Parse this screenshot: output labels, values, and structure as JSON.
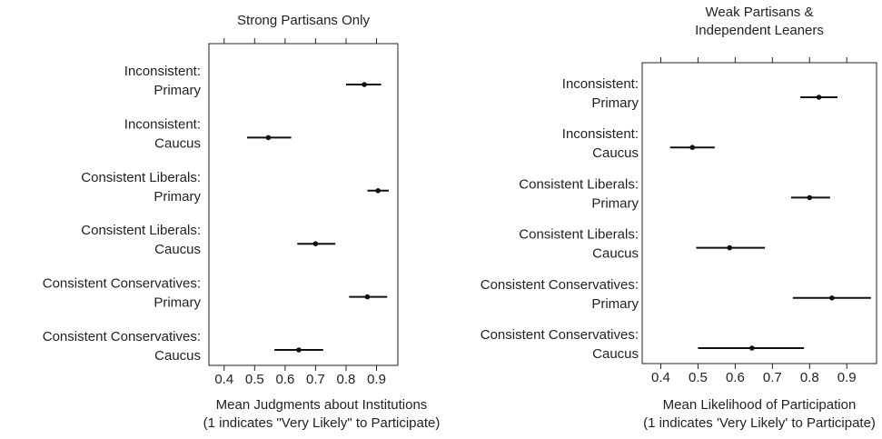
{
  "chart_data": [
    {
      "type": "scatter",
      "title": "Strong Partisans Only",
      "xlabel": [
        "Mean Judgments about Institutions",
        "(1 indicates \"Very Likely\" to Participate)"
      ],
      "ticks": [
        0.4,
        0.5,
        0.6,
        0.7,
        0.8,
        0.9
      ],
      "tick_labels": [
        "0.4",
        "0.5",
        "0.6",
        "0.7",
        "0.8",
        "0.9"
      ],
      "xlim": [
        0.35,
        0.97
      ],
      "grid": false,
      "rows": [
        {
          "label": [
            "Inconsistent:",
            "Primary"
          ],
          "mean": 0.86,
          "lo": 0.8,
          "hi": 0.915
        },
        {
          "label": [
            "Inconsistent:",
            "Caucus"
          ],
          "mean": 0.545,
          "lo": 0.475,
          "hi": 0.62
        },
        {
          "label": [
            "Consistent Liberals:",
            "Primary"
          ],
          "mean": 0.905,
          "lo": 0.87,
          "hi": 0.94
        },
        {
          "label": [
            "Consistent Liberals:",
            "Caucus"
          ],
          "mean": 0.7,
          "lo": 0.64,
          "hi": 0.765
        },
        {
          "label": [
            "Consistent Conservatives:",
            "Primary"
          ],
          "mean": 0.87,
          "lo": 0.81,
          "hi": 0.935
        },
        {
          "label": [
            "Consistent Conservatives:",
            "Caucus"
          ],
          "mean": 0.645,
          "lo": 0.565,
          "hi": 0.725
        }
      ]
    },
    {
      "type": "scatter",
      "title": [
        "Weak Partisans &",
        "Independent Leaners"
      ],
      "xlabel": [
        "Mean Likelihood of Participation",
        "(1 indicates 'Very Likely' to Participate)"
      ],
      "ticks": [
        0.4,
        0.5,
        0.6,
        0.7,
        0.8,
        0.9
      ],
      "tick_labels": [
        "0.4",
        "0.5",
        "0.6",
        "0.7",
        "0.8",
        "0.9"
      ],
      "xlim": [
        0.35,
        0.98
      ],
      "grid": false,
      "rows": [
        {
          "label": [
            "Inconsistent:",
            "Primary"
          ],
          "mean": 0.825,
          "lo": 0.775,
          "hi": 0.875
        },
        {
          "label": [
            "Inconsistent:",
            "Caucus"
          ],
          "mean": 0.485,
          "lo": 0.425,
          "hi": 0.545
        },
        {
          "label": [
            "Consistent Liberals:",
            "Primary"
          ],
          "mean": 0.8,
          "lo": 0.75,
          "hi": 0.855
        },
        {
          "label": [
            "Consistent Liberals:",
            "Caucus"
          ],
          "mean": 0.585,
          "lo": 0.495,
          "hi": 0.68
        },
        {
          "label": [
            "Consistent Conservatives:",
            "Primary"
          ],
          "mean": 0.86,
          "lo": 0.755,
          "hi": 0.965
        },
        {
          "label": [
            "Consistent Conservatives:",
            "Caucus"
          ],
          "mean": 0.645,
          "lo": 0.5,
          "hi": 0.785
        }
      ]
    }
  ]
}
